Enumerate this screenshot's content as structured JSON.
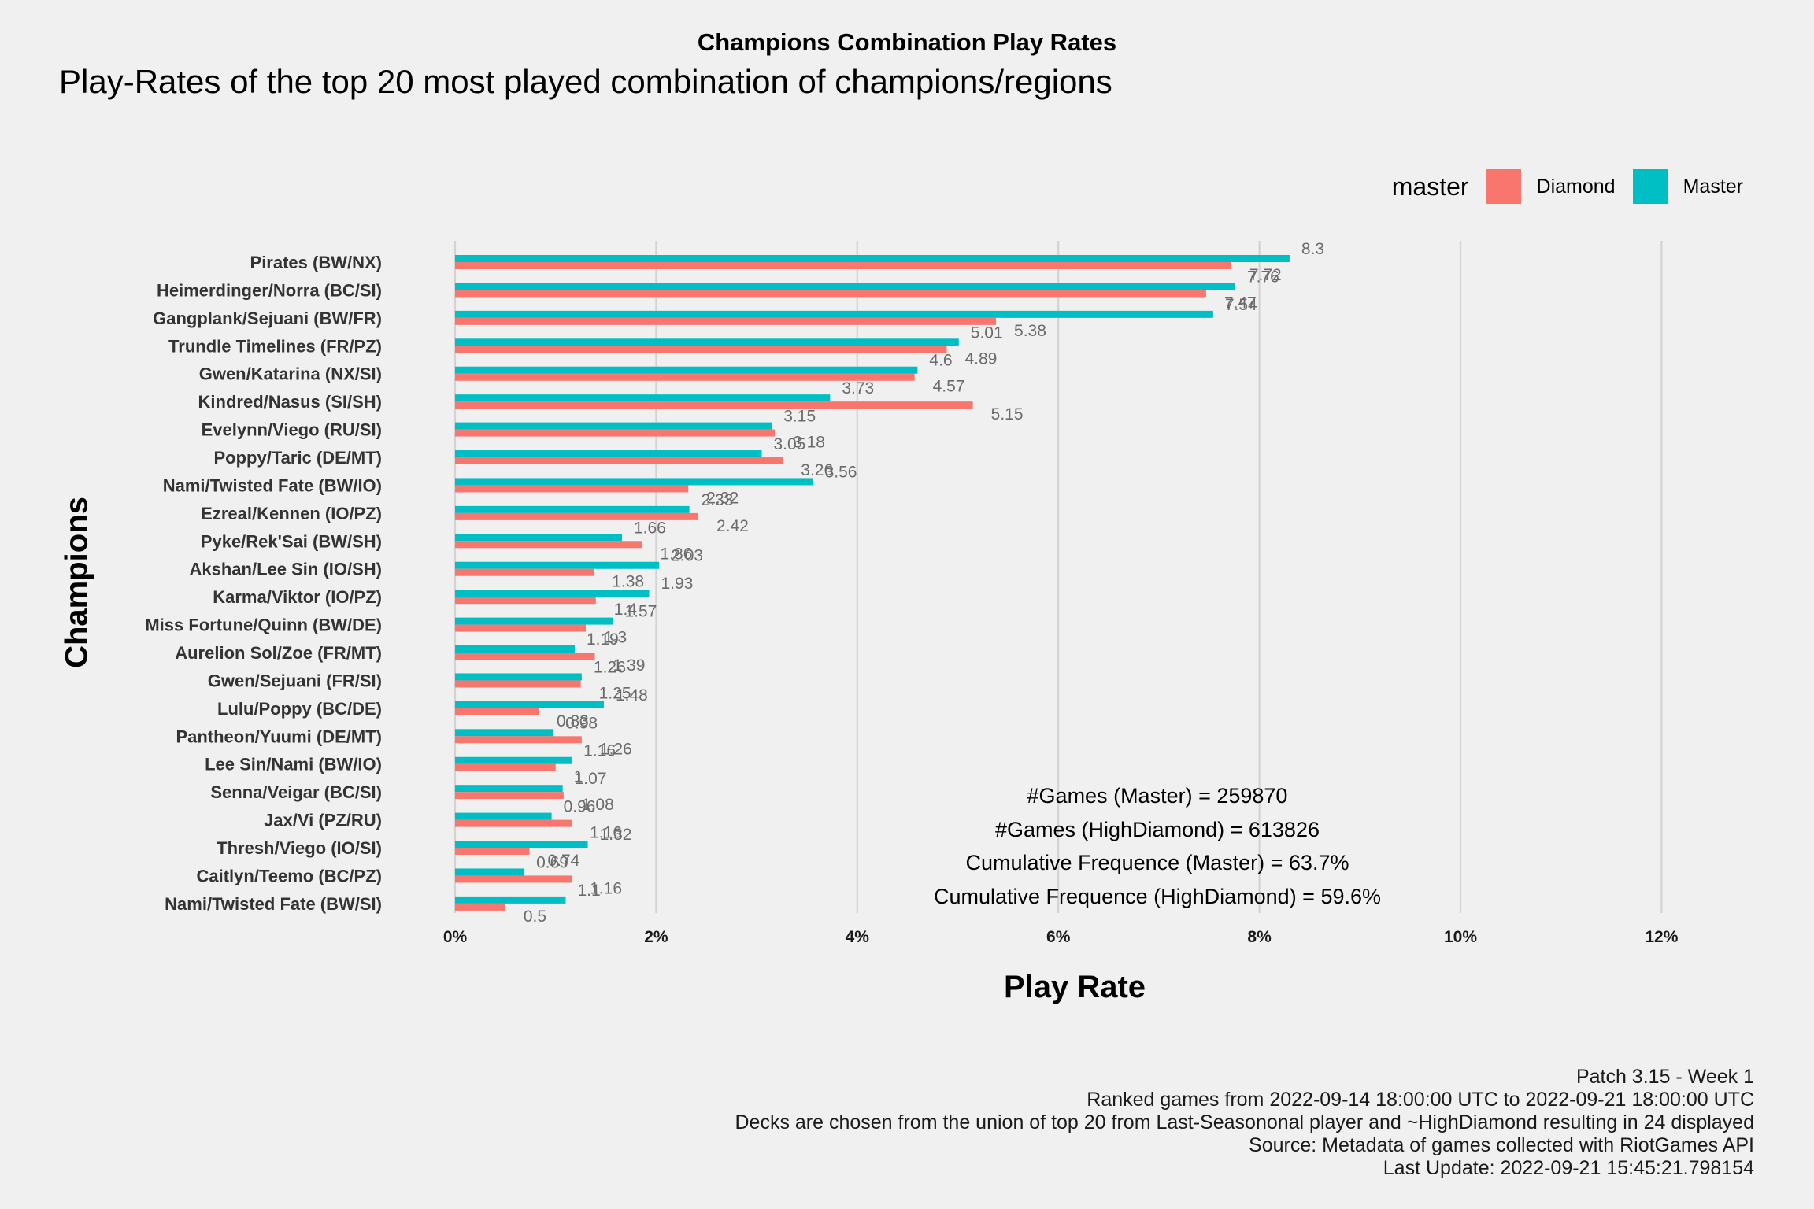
{
  "title": "Champions Combination Play Rates",
  "subtitle": "Play-Rates of the top 20 most played combination of champions/regions",
  "legend": {
    "title": "master",
    "items": [
      {
        "label": "Diamond",
        "color": "#f8766d"
      },
      {
        "label": "Master",
        "color": "#00bfc4"
      }
    ]
  },
  "annotations": [
    "#Games (Master) = 259870",
    "#Games (HighDiamond) = 613826",
    "Cumulative Frequence (Master) = 63.7%",
    "Cumulative Frequence (HighDiamond) = 59.6%"
  ],
  "caption": [
    "Patch 3.15 - Week 1",
    "Ranked games from 2022-09-14 18:00:00 UTC to 2022-09-21 18:00:00 UTC",
    "Decks are chosen from the union of top 20 from Last-Seasononal player and ~HighDiamond resulting in 24 displayed",
    "Source: Metadata of games collected with RiotGames API",
    "Last Update: 2022-09-21 15:45:21.798154"
  ],
  "chart_data": {
    "type": "bar",
    "orientation": "horizontal",
    "xlabel": "Play Rate",
    "ylabel": "Champions",
    "xlim": [
      0,
      12
    ],
    "xticks": [
      0,
      2,
      4,
      6,
      8,
      10,
      12
    ],
    "xtick_labels": [
      "0%",
      "2%",
      "4%",
      "6%",
      "8%",
      "10%",
      "12%"
    ],
    "grid": "vertical major",
    "legend_position": "top-right",
    "categories": [
      "Pirates (BW/NX)",
      "Heimerdinger/Norra (BC/SI)",
      "Gangplank/Sejuani (BW/FR)",
      "Trundle Timelines (FR/PZ)",
      "Gwen/Katarina (NX/SI)",
      "Kindred/Nasus (SI/SH)",
      "Evelynn/Viego (RU/SI)",
      "Poppy/Taric (DE/MT)",
      "Nami/Twisted Fate (BW/IO)",
      "Ezreal/Kennen (IO/PZ)",
      "Pyke/Rek'Sai (BW/SH)",
      "Akshan/Lee Sin (IO/SH)",
      "Karma/Viktor (IO/PZ)",
      "Miss Fortune/Quinn (BW/DE)",
      "Aurelion Sol/Zoe (FR/MT)",
      "Gwen/Sejuani (FR/SI)",
      "Lulu/Poppy (BC/DE)",
      "Pantheon/Yuumi (DE/MT)",
      "Lee Sin/Nami (BW/IO)",
      "Senna/Veigar (BC/SI)",
      "Jax/Vi (PZ/RU)",
      "Thresh/Viego (IO/SI)",
      "Caitlyn/Teemo (BC/PZ)",
      "Nami/Twisted Fate (BW/SI)"
    ],
    "series": [
      {
        "name": "Master",
        "color": "#00bfc4",
        "values": [
          8.3,
          7.76,
          7.54,
          5.01,
          4.6,
          3.73,
          3.15,
          3.05,
          3.56,
          2.33,
          1.66,
          2.03,
          1.93,
          1.57,
          1.19,
          1.26,
          1.48,
          0.98,
          1.16,
          1.07,
          0.96,
          1.32,
          0.69,
          1.1
        ],
        "labels": [
          "8.3",
          "7.76",
          "7.54",
          "5.01",
          "4.6",
          "3.73",
          "3.15",
          "3.05",
          "3.56",
          "2.33",
          "1.66",
          "2.03",
          "1.93",
          "1.57",
          "1.19",
          "1.26",
          "1.48",
          "0.98",
          "1.16",
          "1.07",
          "0.96",
          "1.32",
          "0.69",
          "1.1"
        ]
      },
      {
        "name": "Diamond",
        "color": "#f8766d",
        "values": [
          7.72,
          7.47,
          5.38,
          4.89,
          4.57,
          5.15,
          3.18,
          3.26,
          2.32,
          2.42,
          1.86,
          1.38,
          1.4,
          1.3,
          1.39,
          1.25,
          0.83,
          1.26,
          1,
          1.08,
          1.16,
          0.74,
          1.16,
          0.5
        ],
        "labels": [
          "7.72",
          "7.47",
          "5.38",
          "4.89",
          "4.57",
          "5.15",
          "3.18",
          "3.26",
          "2.32",
          "2.42",
          "1.86",
          "1.38",
          "1.4",
          "1.3",
          "1.39",
          "1.25",
          "0.83",
          "1.26",
          "1",
          "1.08",
          "1.16",
          "0.74",
          "1.16",
          "0.5"
        ]
      }
    ]
  }
}
